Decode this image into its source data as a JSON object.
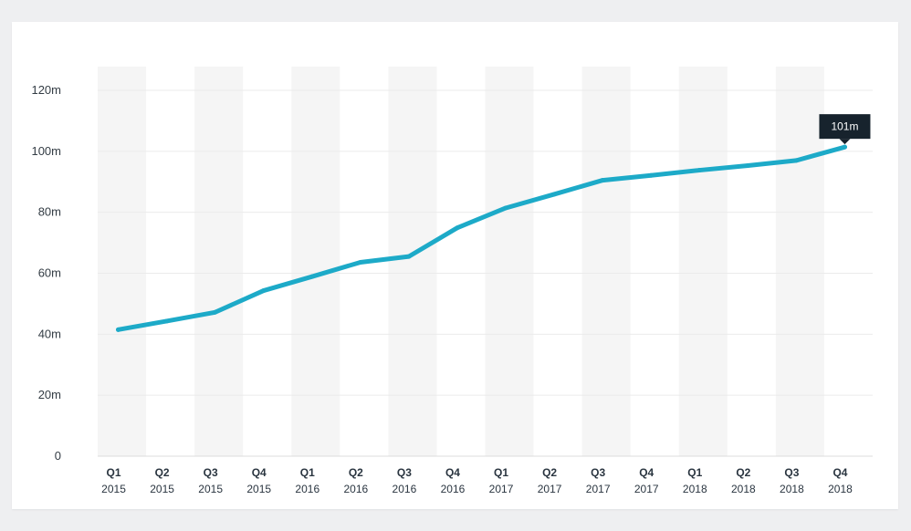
{
  "chart_data": {
    "type": "line",
    "categories": [
      {
        "quarter": "Q1",
        "year": "2015"
      },
      {
        "quarter": "Q2",
        "year": "2015"
      },
      {
        "quarter": "Q3",
        "year": "2015"
      },
      {
        "quarter": "Q4",
        "year": "2015"
      },
      {
        "quarter": "Q1",
        "year": "2016"
      },
      {
        "quarter": "Q2",
        "year": "2016"
      },
      {
        "quarter": "Q3",
        "year": "2016"
      },
      {
        "quarter": "Q4",
        "year": "2016"
      },
      {
        "quarter": "Q1",
        "year": "2017"
      },
      {
        "quarter": "Q2",
        "year": "2017"
      },
      {
        "quarter": "Q3",
        "year": "2017"
      },
      {
        "quarter": "Q4",
        "year": "2017"
      },
      {
        "quarter": "Q1",
        "year": "2018"
      },
      {
        "quarter": "Q2",
        "year": "2018"
      },
      {
        "quarter": "Q3",
        "year": "2018"
      },
      {
        "quarter": "Q4",
        "year": "2018"
      }
    ],
    "series": [
      {
        "values": [
          41.5,
          44.3,
          47.2,
          54.3,
          58.9,
          63.6,
          65.5,
          74.9,
          81.4,
          85.9,
          90.5,
          92.1,
          93.8,
          95.3,
          97.0,
          101.4
        ],
        "color": "#1daac8"
      }
    ],
    "ylim": [
      0,
      120
    ],
    "yticks": [
      0,
      20,
      40,
      60,
      80,
      100,
      120
    ],
    "ytick_labels": [
      "0",
      "20m",
      "40m",
      "60m",
      "80m",
      "100m",
      "120m"
    ],
    "grid": true,
    "alternating_band_color": "#f5f5f5",
    "tooltip": {
      "label": "101m",
      "category_index": 15
    }
  }
}
